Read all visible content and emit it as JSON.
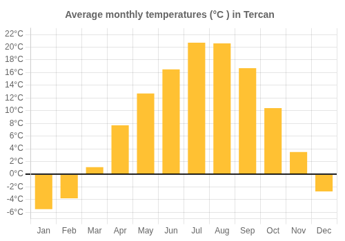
{
  "chart_data": {
    "type": "bar",
    "title": "Average monthly temperatures (°C ) in Tercan",
    "categories": [
      "Jan",
      "Feb",
      "Mar",
      "Apr",
      "May",
      "Jun",
      "Jul",
      "Aug",
      "Sep",
      "Oct",
      "Nov",
      "Dec"
    ],
    "values": [
      -5.5,
      -3.8,
      1.1,
      7.7,
      12.7,
      16.5,
      20.7,
      20.6,
      16.7,
      10.4,
      3.5,
      -2.7
    ],
    "color": "#FFC133",
    "ylim": [
      -7,
      23
    ],
    "yticks": [
      {
        "value": -6,
        "label": "-6°C"
      },
      {
        "value": -4,
        "label": "-4°C"
      },
      {
        "value": -2,
        "label": "-2°C"
      },
      {
        "value": 0,
        "label": "0°C"
      },
      {
        "value": 2,
        "label": "2°C"
      },
      {
        "value": 4,
        "label": "4°C"
      },
      {
        "value": 6,
        "label": "6°C"
      },
      {
        "value": 8,
        "label": "8°C"
      },
      {
        "value": 10,
        "label": "10°C"
      },
      {
        "value": 12,
        "label": "12°C"
      },
      {
        "value": 14,
        "label": "14°C"
      },
      {
        "value": 16,
        "label": "16°C"
      },
      {
        "value": 18,
        "label": "18°C"
      },
      {
        "value": 20,
        "label": "20°C"
      },
      {
        "value": 22,
        "label": "22°C"
      }
    ],
    "grid": true
  }
}
